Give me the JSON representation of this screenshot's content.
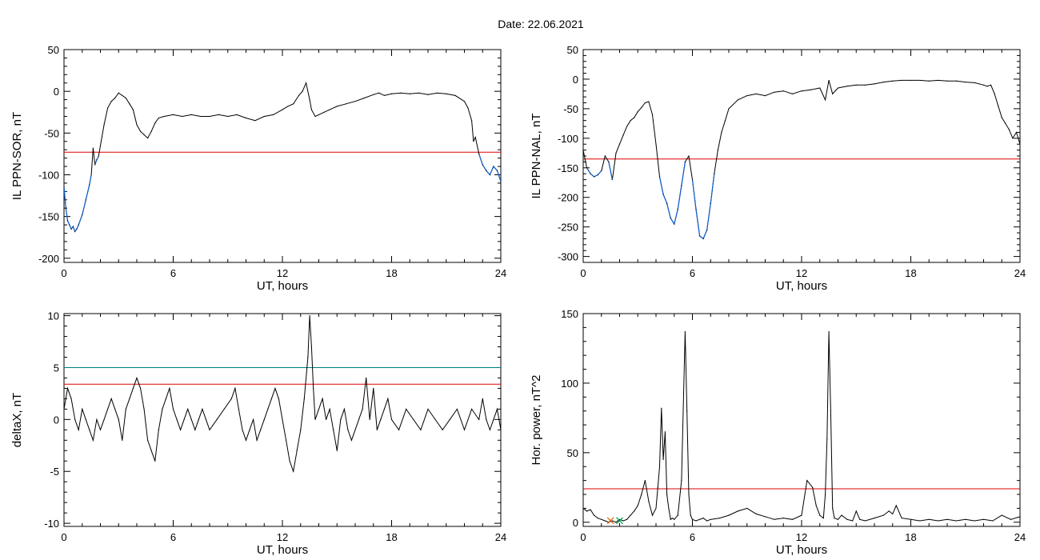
{
  "figure_title": "Date:  22.06.2021",
  "chart_data": [
    {
      "type": "line",
      "xlabel": "UT, hours",
      "ylabel": "IL PPN-SOR, nT",
      "xlim": [
        0,
        24
      ],
      "ylim": [
        -205,
        50
      ],
      "xticks": [
        0,
        6,
        12,
        18,
        24
      ],
      "yticks": [
        -200,
        -150,
        -100,
        -50,
        0,
        50
      ],
      "threshold_lines": [
        {
          "y": -73,
          "color": "#e00000"
        }
      ],
      "highlight": {
        "color": "#1060d0",
        "below": -73
      },
      "series": [
        {
          "color": "#000000",
          "x": [
            0,
            0.1,
            0.2,
            0.3,
            0.4,
            0.5,
            0.6,
            0.7,
            0.8,
            1.0,
            1.2,
            1.4,
            1.5,
            1.6,
            1.7,
            1.8,
            1.9,
            2.0,
            2.2,
            2.4,
            2.6,
            2.8,
            3.0,
            3.2,
            3.4,
            3.6,
            3.8,
            4.0,
            4.2,
            4.4,
            4.6,
            4.8,
            5.0,
            5.2,
            5.5,
            6.0,
            6.5,
            7.0,
            7.5,
            8.0,
            8.5,
            9.0,
            9.5,
            10.0,
            10.5,
            11.0,
            11.5,
            12.0,
            12.3,
            12.6,
            12.9,
            13.1,
            13.3,
            13.5,
            13.6,
            13.8,
            14.0,
            14.3,
            14.6,
            15.0,
            15.5,
            16.0,
            16.5,
            17.0,
            17.3,
            17.6,
            18.0,
            18.5,
            19.0,
            19.5,
            20.0,
            20.5,
            21.0,
            21.5,
            22.0,
            22.2,
            22.4,
            22.5,
            22.6,
            22.8,
            23.0,
            23.2,
            23.4,
            23.6,
            23.8,
            24.0
          ],
          "y": [
            -115,
            -140,
            -155,
            -160,
            -165,
            -162,
            -168,
            -165,
            -160,
            -148,
            -130,
            -112,
            -100,
            -68,
            -88,
            -82,
            -78,
            -65,
            -40,
            -20,
            -12,
            -8,
            -2,
            -5,
            -8,
            -15,
            -22,
            -40,
            -48,
            -52,
            -56,
            -48,
            -38,
            -32,
            -30,
            -28,
            -30,
            -28,
            -30,
            -30,
            -28,
            -30,
            -28,
            -32,
            -35,
            -30,
            -28,
            -22,
            -18,
            -15,
            -5,
            0,
            10,
            -10,
            -22,
            -30,
            -28,
            -25,
            -22,
            -18,
            -15,
            -12,
            -8,
            -4,
            -2,
            -5,
            -3,
            -2,
            -3,
            -2,
            -4,
            -2,
            -3,
            -5,
            -12,
            -20,
            -35,
            -60,
            -55,
            -75,
            -88,
            -95,
            -100,
            -90,
            -95,
            -108
          ]
        }
      ]
    },
    {
      "type": "line",
      "xlabel": "UT, hours",
      "ylabel": "IL PPN-NAL, nT",
      "xlim": [
        0,
        24
      ],
      "ylim": [
        -310,
        50
      ],
      "xticks": [
        0,
        6,
        12,
        18,
        24
      ],
      "yticks": [
        -300,
        -250,
        -200,
        -150,
        -100,
        -50,
        0,
        50
      ],
      "threshold_lines": [
        {
          "y": -135,
          "color": "#e00000"
        }
      ],
      "highlight": {
        "color": "#1060d0",
        "below": -135
      },
      "series": [
        {
          "color": "#000000",
          "x": [
            0,
            0.2,
            0.4,
            0.6,
            0.8,
            1.0,
            1.2,
            1.4,
            1.6,
            1.8,
            2.0,
            2.2,
            2.4,
            2.6,
            2.8,
            3.0,
            3.2,
            3.4,
            3.6,
            3.8,
            4.0,
            4.2,
            4.4,
            4.6,
            4.8,
            5.0,
            5.2,
            5.4,
            5.6,
            5.8,
            6.0,
            6.2,
            6.4,
            6.6,
            6.8,
            7.0,
            7.2,
            7.4,
            7.6,
            7.8,
            8.0,
            8.5,
            9.0,
            9.5,
            10.0,
            10.5,
            11.0,
            11.5,
            12.0,
            12.5,
            13.0,
            13.3,
            13.5,
            13.7,
            14.0,
            14.5,
            15.0,
            15.5,
            16.0,
            16.5,
            17.0,
            17.5,
            18.0,
            18.5,
            19.0,
            19.5,
            20.0,
            20.5,
            21.0,
            21.5,
            22.0,
            22.2,
            22.4,
            22.6,
            22.8,
            23.0,
            23.2,
            23.4,
            23.6,
            23.8,
            24.0
          ],
          "y": [
            -120,
            -150,
            -160,
            -165,
            -162,
            -155,
            -130,
            -140,
            -170,
            -125,
            -110,
            -95,
            -80,
            -70,
            -65,
            -55,
            -48,
            -40,
            -38,
            -60,
            -110,
            -165,
            -195,
            -210,
            -235,
            -245,
            -220,
            -180,
            -140,
            -130,
            -170,
            -220,
            -265,
            -270,
            -255,
            -210,
            -160,
            -120,
            -90,
            -70,
            -50,
            -35,
            -28,
            -25,
            -28,
            -22,
            -20,
            -25,
            -20,
            -18,
            -15,
            -35,
            -2,
            -25,
            -15,
            -12,
            -10,
            -10,
            -8,
            -5,
            -3,
            -2,
            -2,
            -2,
            -3,
            -2,
            -3,
            -3,
            -5,
            -6,
            -10,
            -12,
            -10,
            -25,
            -45,
            -65,
            -75,
            -85,
            -100,
            -90,
            -110
          ]
        }
      ]
    },
    {
      "type": "line",
      "xlabel": "UT, hours",
      "ylabel": "deltaX, nT",
      "xlim": [
        0,
        24
      ],
      "ylim": [
        -10.3,
        10.2
      ],
      "xticks": [
        0,
        6,
        12,
        18,
        24
      ],
      "yticks": [
        -10,
        -5,
        0,
        5,
        10
      ],
      "threshold_lines": [
        {
          "y": 5.0,
          "color": "#008080"
        },
        {
          "y": 3.4,
          "color": "#e00000"
        }
      ],
      "series": [
        {
          "color": "#000000",
          "x": [
            0,
            0.2,
            0.4,
            0.6,
            0.8,
            1.0,
            1.2,
            1.4,
            1.6,
            1.8,
            2.0,
            2.2,
            2.4,
            2.6,
            2.8,
            3.0,
            3.2,
            3.4,
            3.6,
            3.8,
            4.0,
            4.2,
            4.4,
            4.6,
            4.8,
            5.0,
            5.2,
            5.4,
            5.6,
            5.8,
            6.0,
            6.2,
            6.4,
            6.6,
            6.8,
            7.0,
            7.2,
            7.4,
            7.6,
            7.8,
            8.0,
            8.4,
            8.8,
            9.2,
            9.4,
            9.6,
            9.8,
            10.0,
            10.2,
            10.4,
            10.6,
            10.8,
            11.0,
            11.2,
            11.4,
            11.6,
            11.8,
            12.0,
            12.2,
            12.4,
            12.6,
            12.8,
            13.0,
            13.2,
            13.4,
            13.5,
            13.6,
            13.7,
            13.8,
            14.0,
            14.2,
            14.4,
            14.6,
            14.8,
            15.0,
            15.2,
            15.4,
            15.6,
            15.8,
            16.0,
            16.2,
            16.4,
            16.6,
            16.8,
            17.0,
            17.2,
            17.4,
            17.6,
            17.8,
            18.0,
            18.4,
            18.8,
            19.2,
            19.6,
            20.0,
            20.4,
            20.8,
            21.2,
            21.6,
            22.0,
            22.4,
            22.8,
            23.0,
            23.2,
            23.4,
            23.6,
            23.8,
            24.0
          ],
          "y": [
            1,
            3,
            2,
            0,
            -1,
            1,
            0,
            -1,
            -2,
            0,
            -1,
            0,
            1,
            2,
            1,
            0,
            -2,
            1,
            2,
            3,
            4,
            3,
            1,
            -2,
            -3,
            -4,
            -1,
            1,
            2,
            3,
            1,
            0,
            -1,
            0,
            1,
            0,
            -1,
            0,
            1,
            0,
            -1,
            0,
            1,
            2,
            3,
            1,
            -1,
            -2,
            -1,
            0,
            -2,
            -1,
            0,
            1,
            2,
            3,
            2,
            0,
            -2,
            -4,
            -5,
            -3,
            -1,
            2,
            6,
            10,
            7,
            3,
            0,
            1,
            2,
            0,
            1,
            -1,
            -3,
            0,
            1,
            -1,
            -2,
            -1,
            0,
            1,
            4,
            0,
            3,
            -1,
            0,
            1,
            2,
            0,
            -1,
            1,
            0,
            -1,
            1,
            0,
            -1,
            0,
            1,
            -1,
            1,
            0,
            2,
            0,
            -1,
            0,
            1,
            -1
          ]
        }
      ]
    },
    {
      "type": "line",
      "xlabel": "UT, hours",
      "ylabel": "Hor. power, nT^2",
      "xlim": [
        0,
        24
      ],
      "ylim": [
        -3,
        150
      ],
      "xticks": [
        0,
        6,
        12,
        18,
        24
      ],
      "yticks": [
        0,
        50,
        100,
        150
      ],
      "threshold_lines": [
        {
          "y": 24,
          "color": "#e00000"
        }
      ],
      "markers": [
        {
          "x": 1.5,
          "y": 0,
          "color": "#e06000"
        },
        {
          "x": 2.0,
          "y": 0,
          "color": "#00a050"
        }
      ],
      "series": [
        {
          "color": "#000000",
          "x": [
            0,
            0.2,
            0.4,
            0.6,
            0.8,
            1.0,
            1.2,
            1.4,
            1.6,
            1.8,
            2.0,
            2.2,
            2.4,
            2.6,
            2.8,
            3.0,
            3.2,
            3.4,
            3.6,
            3.8,
            4.0,
            4.1,
            4.2,
            4.3,
            4.4,
            4.5,
            4.6,
            4.7,
            4.8,
            4.9,
            5.0,
            5.2,
            5.4,
            5.6,
            5.7,
            5.8,
            5.9,
            6.0,
            6.2,
            6.4,
            6.6,
            6.8,
            7.0,
            7.5,
            8.0,
            8.5,
            9.0,
            9.5,
            10.0,
            10.5,
            11.0,
            11.5,
            12.0,
            12.3,
            12.6,
            12.8,
            13.0,
            13.2,
            13.3,
            13.4,
            13.5,
            13.6,
            13.7,
            13.8,
            14.0,
            14.2,
            14.5,
            14.8,
            15.0,
            15.2,
            15.5,
            16.0,
            16.5,
            16.8,
            17.0,
            17.2,
            17.5,
            18.0,
            18.5,
            19.0,
            19.5,
            20.0,
            20.5,
            21.0,
            21.5,
            22.0,
            22.5,
            23.0,
            23.5,
            24.0
          ],
          "y": [
            10,
            8,
            9,
            5,
            3,
            2,
            1,
            0,
            1,
            0,
            2,
            1,
            2,
            5,
            8,
            12,
            20,
            30,
            15,
            5,
            10,
            25,
            40,
            82,
            45,
            65,
            20,
            10,
            2,
            3,
            2,
            5,
            30,
            137,
            80,
            20,
            5,
            2,
            1,
            2,
            3,
            1,
            2,
            3,
            5,
            8,
            10,
            6,
            4,
            2,
            3,
            2,
            5,
            30,
            25,
            12,
            5,
            3,
            20,
            60,
            137,
            80,
            10,
            3,
            2,
            5,
            2,
            1,
            8,
            2,
            1,
            3,
            5,
            8,
            6,
            12,
            3,
            2,
            1,
            2,
            1,
            2,
            1,
            2,
            1,
            2,
            1,
            5,
            2,
            4
          ]
        }
      ]
    }
  ]
}
